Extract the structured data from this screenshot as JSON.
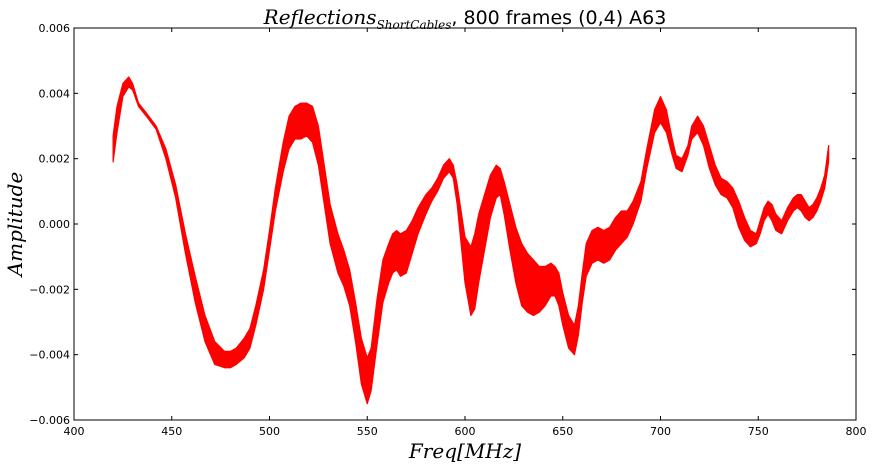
{
  "chart_data": {
    "type": "area",
    "title": {
      "math_main": "Reflections",
      "math_subscript": "ShortCables",
      "rest": ", 800 frames (0,4) A63"
    },
    "xlabel": "Freq[MHz]",
    "ylabel": "Amplitude",
    "xlim": [
      400,
      800
    ],
    "ylim": [
      -0.006,
      0.006
    ],
    "xticks": [
      400,
      450,
      500,
      550,
      600,
      650,
      700,
      750,
      800
    ],
    "xtick_labels": [
      "400",
      "450",
      "500",
      "550",
      "600",
      "650",
      "700",
      "750",
      "800"
    ],
    "yticks": [
      -0.006,
      -0.004,
      -0.002,
      0.0,
      0.002,
      0.004,
      0.006
    ],
    "ytick_labels": [
      "−0.006",
      "−0.004",
      "−0.002",
      "0.000",
      "0.002",
      "0.004",
      "0.006"
    ],
    "grid": false,
    "color": "#ff0000",
    "series": [
      {
        "x": [
          420,
          422,
          425,
          428,
          430,
          433,
          437,
          442,
          447,
          452,
          457,
          462,
          467,
          472,
          477,
          480,
          483,
          487,
          490,
          493,
          497,
          500,
          503,
          507,
          510,
          513,
          516,
          519,
          522,
          525,
          528,
          531,
          535,
          538,
          541,
          544,
          547,
          550,
          552,
          555,
          558,
          561,
          563,
          565,
          567,
          570,
          573,
          576,
          580,
          583,
          586,
          589,
          592,
          594,
          596,
          598,
          600,
          603,
          605,
          607,
          610,
          613,
          616,
          618,
          620,
          623,
          626,
          629,
          632,
          635,
          638,
          641,
          644,
          646,
          648,
          650,
          653,
          656,
          658,
          660,
          662,
          665,
          668,
          671,
          674,
          677,
          680,
          683,
          686,
          690,
          693,
          697,
          700,
          703,
          706,
          708,
          711,
          714,
          716,
          719,
          722,
          725,
          728,
          731,
          734,
          737,
          740,
          743,
          746,
          749,
          751,
          753,
          755,
          757,
          759,
          762,
          765,
          768,
          770,
          772,
          774,
          776,
          778,
          780,
          782,
          784,
          786
        ],
        "upper": [
          0.0027,
          0.0036,
          0.0043,
          0.0045,
          0.0043,
          0.0037,
          0.0034,
          0.003,
          0.0023,
          0.0012,
          -0.0003,
          -0.0016,
          -0.0028,
          -0.0036,
          -0.0039,
          -0.0039,
          -0.0038,
          -0.0035,
          -0.0032,
          -0.0025,
          -0.0014,
          -0.0002,
          0.0011,
          0.0025,
          0.0033,
          0.0036,
          0.0037,
          0.0037,
          0.0036,
          0.003,
          0.0018,
          0.0006,
          -0.0003,
          -0.0008,
          -0.0014,
          -0.0024,
          -0.0035,
          -0.0041,
          -0.0038,
          -0.0023,
          -0.0011,
          -0.0006,
          -0.0003,
          -0.0002,
          -0.0003,
          -0.0002,
          0.0001,
          0.0005,
          0.0009,
          0.0011,
          0.0014,
          0.0018,
          0.002,
          0.0018,
          0.0012,
          0.0004,
          -0.0004,
          -0.0007,
          -0.0003,
          0.0003,
          0.0009,
          0.0015,
          0.0018,
          0.0017,
          0.0013,
          0.0006,
          -0.0001,
          -0.0006,
          -0.0009,
          -0.0011,
          -0.0013,
          -0.0013,
          -0.0012,
          -0.0013,
          -0.0015,
          -0.0021,
          -0.0028,
          -0.0031,
          -0.0025,
          -0.0015,
          -0.0006,
          -0.0002,
          -0.0001,
          -0.0002,
          -0.0001,
          0.0002,
          0.0004,
          0.0004,
          0.0007,
          0.0013,
          0.0023,
          0.0035,
          0.0039,
          0.0035,
          0.0026,
          0.0021,
          0.002,
          0.0024,
          0.003,
          0.0033,
          0.003,
          0.0024,
          0.0018,
          0.0014,
          0.0013,
          0.0011,
          0.0007,
          0.0002,
          -0.0002,
          -0.0003,
          0.0001,
          0.0005,
          0.0007,
          0.0006,
          0.0003,
          0.0001,
          0.0005,
          0.0008,
          0.0009,
          0.0009,
          0.0007,
          0.0005,
          0.0006,
          0.0008,
          0.0011,
          0.0015,
          0.0024
        ],
        "lower": [
          0.0019,
          0.0028,
          0.0039,
          0.0042,
          0.0041,
          0.0036,
          0.0033,
          0.0029,
          0.002,
          0.0008,
          -0.0009,
          -0.0024,
          -0.0036,
          -0.0043,
          -0.0044,
          -0.0044,
          -0.0043,
          -0.0041,
          -0.0038,
          -0.0031,
          -0.002,
          -0.0008,
          0.0004,
          0.0016,
          0.0023,
          0.0026,
          0.0026,
          0.0027,
          0.0025,
          0.0018,
          0.0006,
          -0.0006,
          -0.0015,
          -0.0019,
          -0.0025,
          -0.0036,
          -0.0049,
          -0.0055,
          -0.0051,
          -0.0037,
          -0.0024,
          -0.0018,
          -0.0015,
          -0.0014,
          -0.0016,
          -0.0015,
          -0.0009,
          -0.0003,
          0.0003,
          0.0007,
          0.001,
          0.0014,
          0.0016,
          0.0014,
          0.0006,
          -0.0006,
          -0.0018,
          -0.0028,
          -0.0026,
          -0.0018,
          -0.0008,
          0.0002,
          0.0008,
          0.0009,
          0.0003,
          -0.0008,
          -0.0018,
          -0.0025,
          -0.0027,
          -0.0028,
          -0.0027,
          -0.0025,
          -0.0022,
          -0.0022,
          -0.0025,
          -0.0031,
          -0.0038,
          -0.004,
          -0.0034,
          -0.0024,
          -0.0016,
          -0.0012,
          -0.0011,
          -0.0012,
          -0.0011,
          -0.0008,
          -0.0006,
          -0.0004,
          0.0,
          0.0007,
          0.0017,
          0.0028,
          0.0031,
          0.0028,
          0.0021,
          0.0017,
          0.0016,
          0.0021,
          0.0026,
          0.0028,
          0.0024,
          0.0017,
          0.0012,
          0.0009,
          0.0008,
          0.0005,
          -0.0001,
          -0.0005,
          -0.0007,
          -0.0006,
          -0.0003,
          0.0001,
          0.0003,
          0.0001,
          -0.0002,
          -0.0003,
          0.0001,
          0.0004,
          0.0005,
          0.0004,
          0.0002,
          0.0001,
          0.0002,
          0.0004,
          0.0007,
          0.0011,
          0.0019
        ]
      }
    ]
  }
}
